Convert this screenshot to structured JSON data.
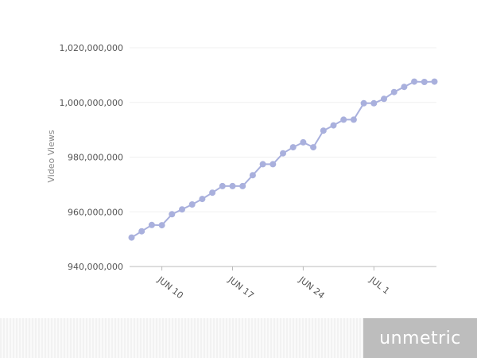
{
  "chart_data": {
    "type": "line",
    "title": "",
    "xlabel": "",
    "ylabel": "Video Views",
    "x": [
      "Jun 7",
      "Jun 8",
      "Jun 9",
      "Jun 10",
      "Jun 11",
      "Jun 12",
      "Jun 13",
      "Jun 14",
      "Jun 15",
      "Jun 16",
      "Jun 17",
      "Jun 18",
      "Jun 19",
      "Jun 20",
      "Jun 21",
      "Jun 22",
      "Jun 23",
      "Jun 24",
      "Jun 25",
      "Jun 26",
      "Jun 27",
      "Jun 28",
      "Jun 29",
      "Jun 30",
      "Jul 1",
      "Jul 2",
      "Jul 3",
      "Jul 4",
      "Jul 5",
      "Jul 6",
      "Jul 7"
    ],
    "series": [
      {
        "values": [
          950600000,
          952900000,
          955200000,
          955100000,
          959100000,
          960900000,
          962700000,
          964700000,
          967000000,
          969400000,
          969400000,
          969400000,
          973400000,
          977400000,
          977400000,
          981400000,
          983600000,
          985400000,
          983600000,
          989700000,
          991600000,
          993700000,
          993700000,
          999700000,
          999700000,
          1001300000,
          1003800000,
          1005700000,
          1007600000,
          1007500000,
          1007600000
        ]
      }
    ],
    "xticks": [
      {
        "index": 3,
        "label": "JUN 10"
      },
      {
        "index": 10,
        "label": "JUN 17"
      },
      {
        "index": 17,
        "label": "JUN 24"
      },
      {
        "index": 24,
        "label": "JUL 1"
      }
    ],
    "yticks": [
      {
        "value": 940000000,
        "label": "940,000,000"
      },
      {
        "value": 960000000,
        "label": "960,000,000"
      },
      {
        "value": 980000000,
        "label": "980,000,000"
      },
      {
        "value": 1000000000,
        "label": "1,000,000,000"
      },
      {
        "value": 1020000000,
        "label": "1,020,000,000"
      }
    ],
    "ylim": [
      940000000,
      1020000000
    ],
    "grid": true,
    "legend": "none",
    "colors": {
      "line": "#a9b0dd",
      "marker": "#a9b0dd",
      "grid": "#f0f0f0",
      "axis": "#bbbbbb"
    }
  },
  "footer": {
    "brand": "unmetric"
  }
}
